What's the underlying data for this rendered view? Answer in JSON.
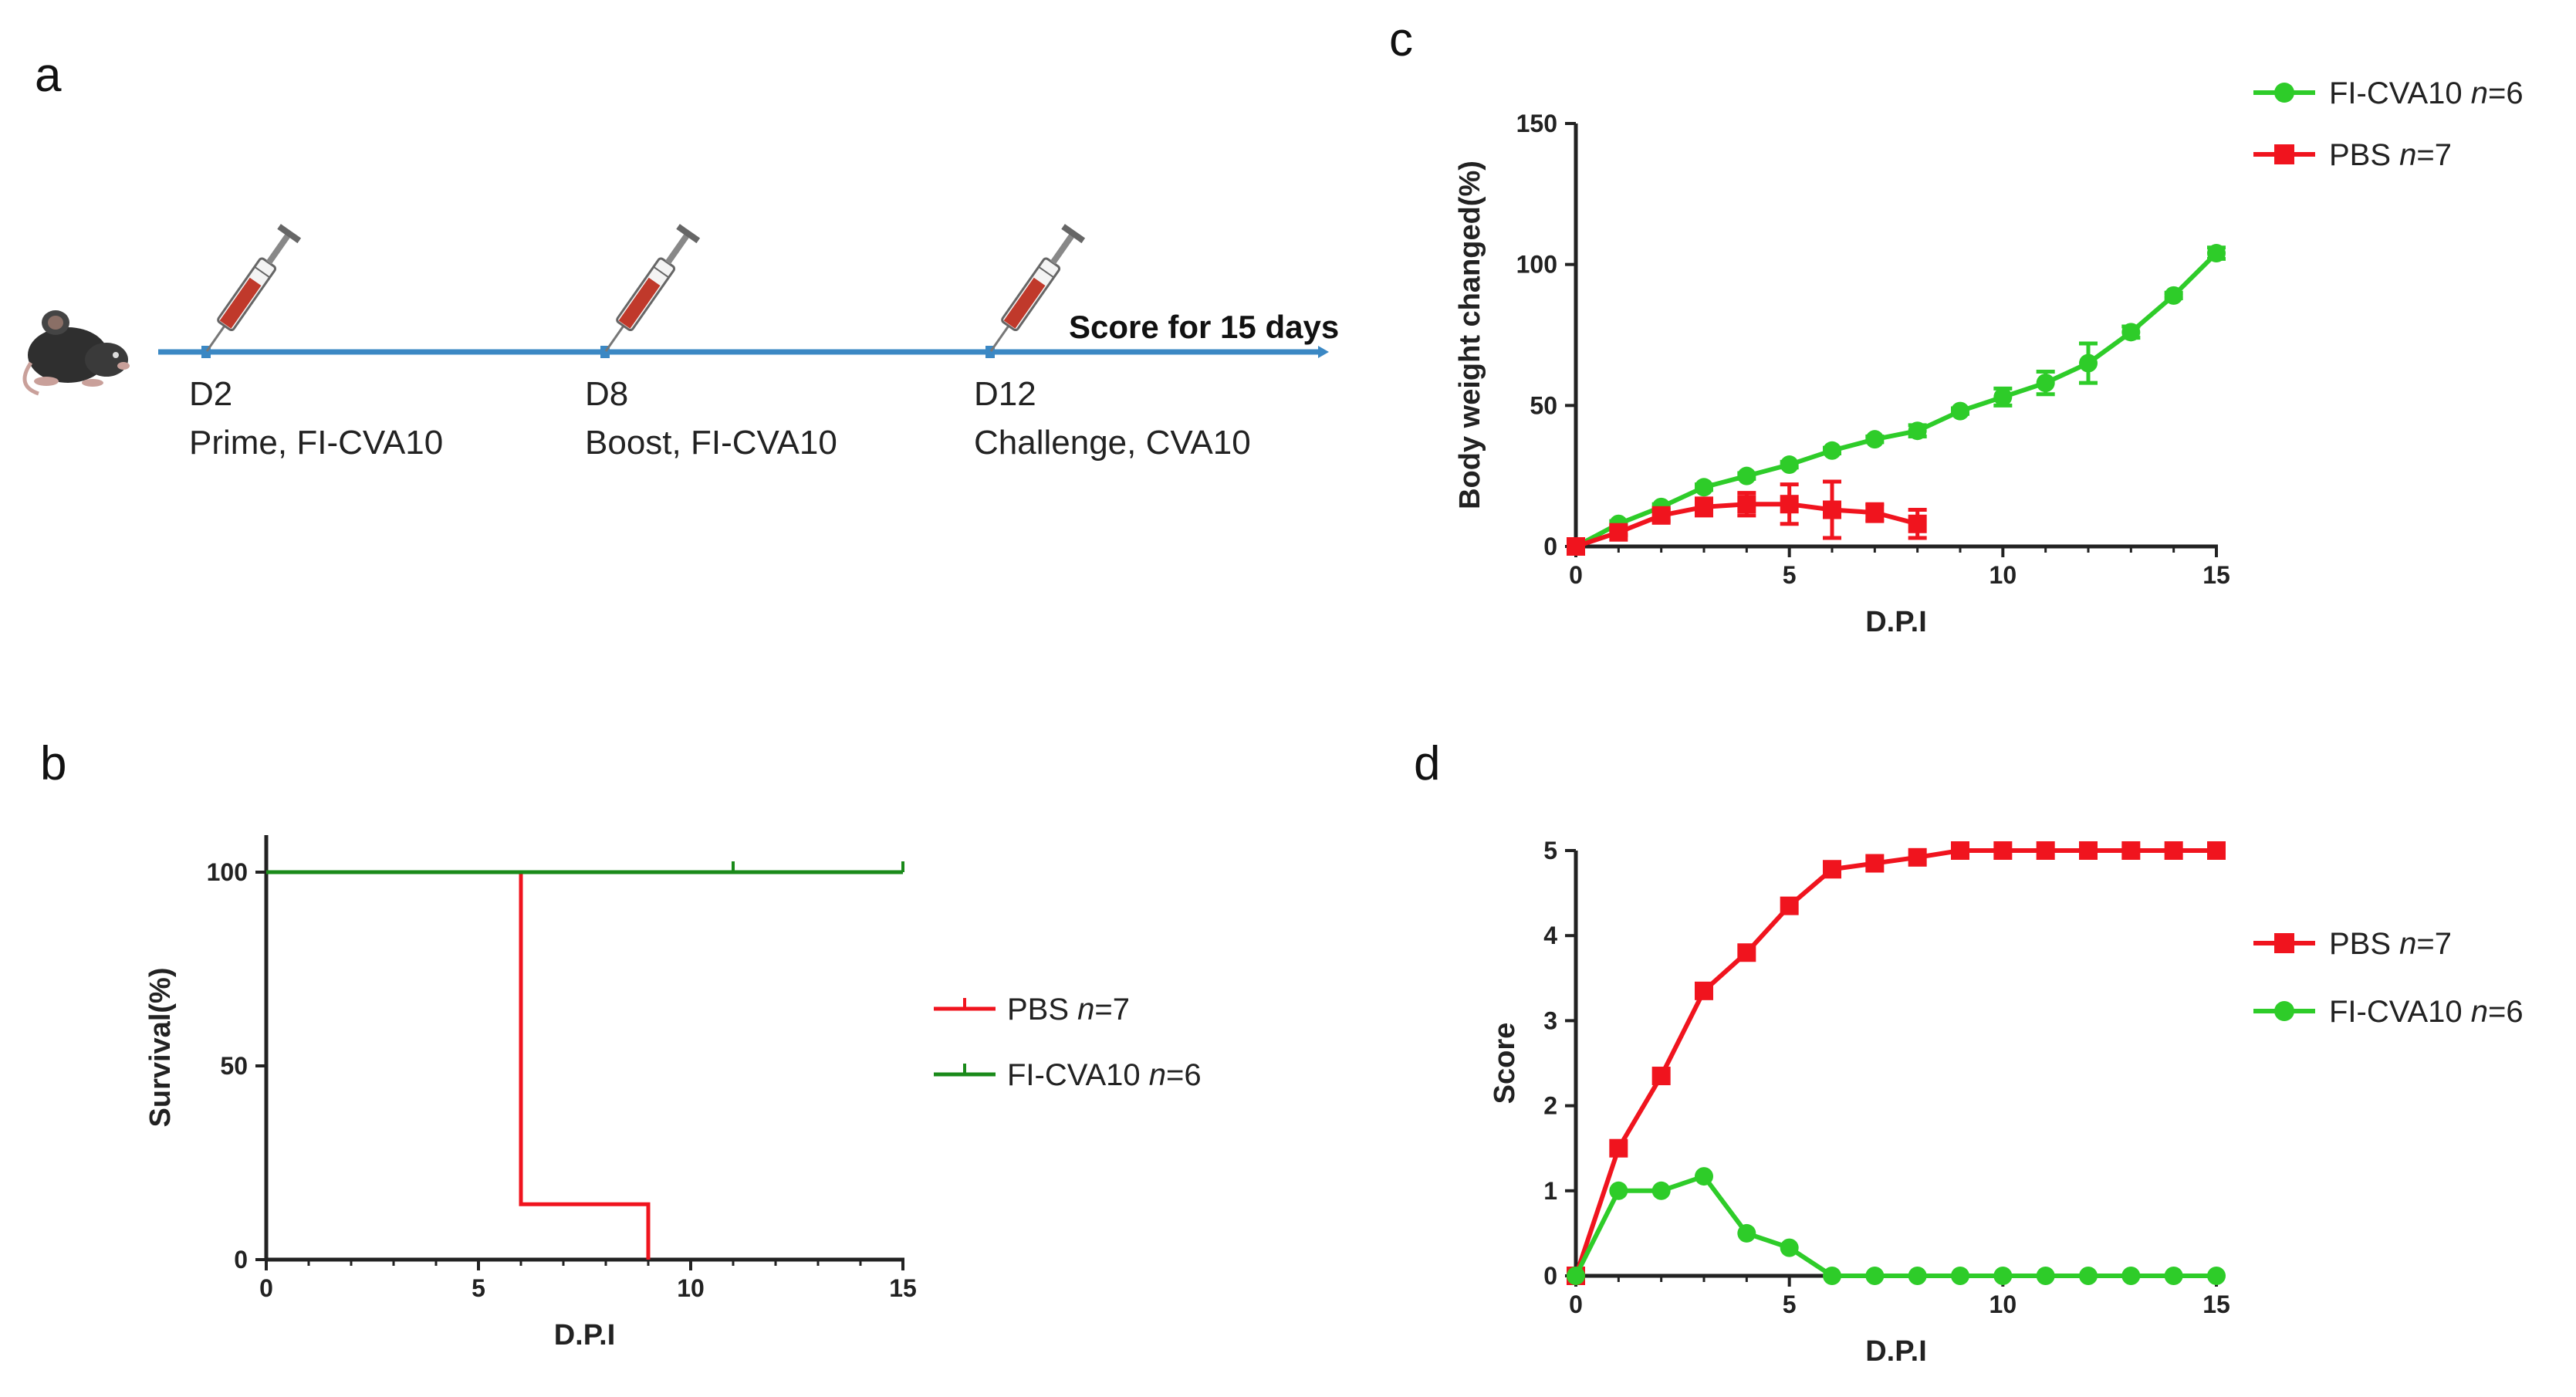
{
  "panels": {
    "a": "a",
    "b": "b",
    "c": "c",
    "d": "d"
  },
  "timeline": {
    "score_label": "Score for 15 days",
    "events": [
      {
        "day": "D2",
        "desc": "Prime, FI-CVA10"
      },
      {
        "day": "D8",
        "desc": "Boost, FI-CVA10"
      },
      {
        "day": "D12",
        "desc": "Challenge,  CVA10"
      }
    ],
    "colors": {
      "line": "#3b88c4",
      "syringe_fill": "#c0392b",
      "mouse": "#333333"
    }
  },
  "colors": {
    "red": "#f0141e",
    "green": "#2ecc29",
    "dark_green": "#1a8a1a",
    "axis": "#222222"
  },
  "chart_data": [
    {
      "id": "b",
      "type": "line",
      "step": true,
      "title": "",
      "xlabel": "D.P.I",
      "ylabel": "Survival(%)",
      "xlim": [
        0,
        15
      ],
      "ylim": [
        0,
        110
      ],
      "xticks": [
        0,
        5,
        10,
        15
      ],
      "yticks": [
        0,
        50,
        100
      ],
      "series": [
        {
          "name": "PBS",
          "n": "n",
          "count": "=7",
          "color": "#f0141e",
          "x": [
            0,
            6,
            6,
            9,
            9
          ],
          "y": [
            100,
            100,
            14.3,
            14.3,
            0
          ],
          "censor": []
        },
        {
          "name": "FI-CVA10",
          "n": "n",
          "count": "=6",
          "color": "#1a8a1a",
          "x": [
            0,
            15
          ],
          "y": [
            100,
            100
          ],
          "censor": [
            11,
            15
          ]
        }
      ]
    },
    {
      "id": "c",
      "type": "line",
      "title": "",
      "xlabel": "D.P.I",
      "ylabel": "Body weight changed(%)",
      "xlim": [
        0,
        15
      ],
      "ylim": [
        0,
        150
      ],
      "xticks": [
        0,
        5,
        10,
        15
      ],
      "yticks": [
        0,
        50,
        100,
        150
      ],
      "series": [
        {
          "name": "FI-CVA10",
          "n": "n",
          "count": "=6",
          "color": "#2ecc29",
          "marker": "circle",
          "x": [
            0,
            1,
            2,
            3,
            4,
            5,
            6,
            7,
            8,
            9,
            10,
            11,
            12,
            13,
            14,
            15
          ],
          "y": [
            0,
            8,
            14,
            21,
            25,
            29,
            34,
            38,
            41,
            48,
            53,
            58,
            65,
            76,
            89,
            104
          ],
          "err": [
            0,
            1,
            1,
            1,
            1,
            1,
            1,
            1,
            2,
            1,
            3,
            4,
            7,
            2,
            1,
            2
          ]
        },
        {
          "name": "PBS",
          "n": "n",
          "count": "=7",
          "color": "#f0141e",
          "marker": "square",
          "x": [
            0,
            1,
            2,
            3,
            4,
            5,
            6,
            7,
            8
          ],
          "y": [
            0,
            5,
            11,
            14,
            15,
            15,
            13,
            12,
            8
          ],
          "err": [
            0,
            1,
            2,
            3,
            4,
            7,
            10,
            3,
            5
          ]
        }
      ]
    },
    {
      "id": "d",
      "type": "line",
      "title": "",
      "xlabel": "D.P.I",
      "ylabel": "Score",
      "xlim": [
        0,
        15
      ],
      "ylim": [
        0,
        5
      ],
      "xticks": [
        0,
        5,
        10,
        15
      ],
      "yticks": [
        0,
        1,
        2,
        3,
        4,
        5
      ],
      "series": [
        {
          "name": "PBS",
          "n": "n",
          "count": "=7",
          "color": "#f0141e",
          "marker": "square",
          "x": [
            0,
            1,
            2,
            3,
            4,
            5,
            6,
            7,
            8,
            9,
            10,
            11,
            12,
            13,
            14,
            15
          ],
          "y": [
            0,
            1.5,
            2.35,
            3.35,
            3.8,
            4.35,
            4.78,
            4.85,
            4.92,
            5,
            5,
            5,
            5,
            5,
            5,
            5
          ]
        },
        {
          "name": "FI-CVA10",
          "n": "n",
          "count": "=6",
          "color": "#2ecc29",
          "marker": "circle",
          "x": [
            0,
            1,
            2,
            3,
            4,
            5,
            6,
            7,
            8,
            9,
            10,
            11,
            12,
            13,
            14,
            15
          ],
          "y": [
            0,
            1,
            1,
            1.17,
            0.5,
            0.33,
            0,
            0,
            0,
            0,
            0,
            0,
            0,
            0,
            0,
            0
          ]
        }
      ]
    }
  ]
}
